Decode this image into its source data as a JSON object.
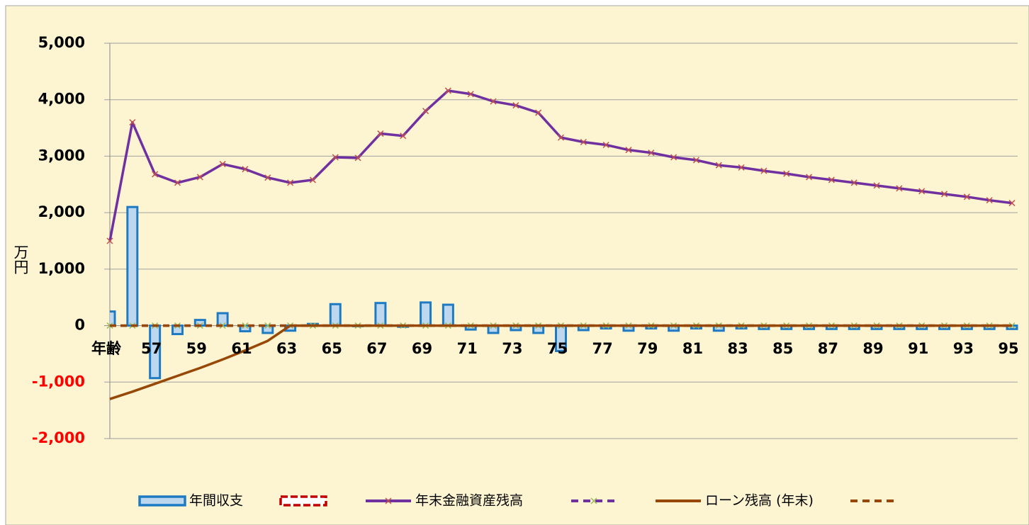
{
  "chart_data": {
    "type": "combo",
    "y_label": "万円",
    "categories": [
      "年齢",
      null,
      "57",
      null,
      "59",
      null,
      "61",
      null,
      "63",
      null,
      "65",
      null,
      "67",
      null,
      "69",
      null,
      "71",
      null,
      "73",
      null,
      "75",
      null,
      "77",
      null,
      "79",
      null,
      "81",
      null,
      "83",
      null,
      "85",
      null,
      "87",
      null,
      "89",
      null,
      "91",
      null,
      "93",
      null,
      "95"
    ],
    "ylim": [
      -2000,
      5000
    ],
    "yticks": [
      {
        "value": -2000,
        "label": "-2,000"
      },
      {
        "value": -1000,
        "label": "-1,000"
      },
      0,
      {
        "value": 1000,
        "label": "1,000"
      },
      {
        "value": 2000,
        "label": "2,000"
      },
      {
        "value": 3000,
        "label": "3,000"
      },
      {
        "value": 4000,
        "label": "4,000"
      },
      {
        "value": 5000,
        "label": "5,000"
      }
    ],
    "grid": true,
    "legend": "bottom",
    "series": [
      {
        "name": "年間収支",
        "type": "bar",
        "color": "#BDD7EE",
        "edge": "#1E7BC3",
        "values": [
          250,
          2100,
          -930,
          -150,
          100,
          220,
          -100,
          -130,
          -90,
          30,
          380,
          -10,
          400,
          -20,
          410,
          370,
          -70,
          -130,
          -80,
          -130,
          -450,
          -80,
          -50,
          -90,
          -50,
          -90,
          -50,
          -90,
          -50,
          -60,
          -60,
          -60,
          -60,
          -60,
          -60,
          -60,
          -60,
          -60,
          -60,
          -60,
          -60
        ]
      },
      {
        "type": "bar",
        "color": "#FFFFFF",
        "edge": "#C00000",
        "dash": true,
        "values": [
          0,
          0,
          0,
          0,
          0,
          0,
          0,
          0,
          0,
          0,
          0,
          0,
          0,
          0,
          0,
          0,
          0,
          0,
          0,
          0,
          0,
          0,
          0,
          0,
          0,
          0,
          0,
          0,
          0,
          0,
          0,
          0,
          0,
          0,
          0,
          0,
          0,
          0,
          0,
          0,
          0
        ]
      },
      {
        "name": "年末金融資産残高",
        "type": "line",
        "color": "#7030A0",
        "marker": "x",
        "marker_color": "#C0504D",
        "values": [
          1500,
          3600,
          2680,
          2530,
          2630,
          2860,
          2770,
          2620,
          2530,
          2580,
          2980,
          2970,
          3400,
          3360,
          3800,
          4160,
          4100,
          3970,
          3900,
          3770,
          3330,
          3250,
          3200,
          3110,
          3060,
          2980,
          2930,
          2840,
          2800,
          2740,
          2690,
          2630,
          2580,
          2530,
          2480,
          2430,
          2380,
          2330,
          2280,
          2220,
          2170
        ]
      },
      {
        "type": "line",
        "color": "#7030A0",
        "dash": true,
        "marker": "x",
        "marker_color": "#9BBB59",
        "values": [
          0,
          0,
          0,
          0,
          0,
          0,
          0,
          0,
          0,
          0,
          0,
          0,
          0,
          0,
          0,
          0,
          0,
          0,
          0,
          0,
          0,
          0,
          0,
          0,
          0,
          0,
          0,
          0,
          0,
          0,
          0,
          0,
          0,
          0,
          0,
          0,
          0,
          0,
          0,
          0,
          0
        ]
      },
      {
        "name": "ローン残高 (年末)",
        "type": "line",
        "color": "#974706",
        "values": [
          -1300,
          -1170,
          -1030,
          -890,
          -750,
          -600,
          -440,
          -270,
          0,
          0,
          0,
          0,
          0,
          0,
          0,
          0,
          0,
          0,
          0,
          0,
          0,
          0,
          0,
          0,
          0,
          0,
          0,
          0,
          0,
          0,
          0,
          0,
          0,
          0,
          0,
          0,
          0,
          0,
          0,
          0,
          0
        ]
      },
      {
        "type": "line",
        "color": "#974706",
        "dash": true,
        "values": [
          0,
          0,
          0,
          0,
          0,
          0,
          0,
          0,
          0,
          0,
          0,
          0,
          0,
          0,
          0,
          0,
          0,
          0,
          0,
          0,
          0,
          0,
          0,
          0,
          0,
          0,
          0,
          0,
          0,
          0,
          0,
          0,
          0,
          0,
          0,
          0,
          0,
          0,
          0,
          0,
          0
        ]
      }
    ]
  }
}
